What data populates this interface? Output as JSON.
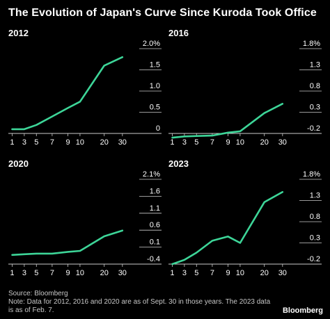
{
  "title": "The Evolution of Japan's Curve Since Kuroda Took Office",
  "colors": {
    "background": "#000000",
    "line": "#3dd598",
    "text": "#ffffff",
    "axis": "#cccccc"
  },
  "chart_data": [
    {
      "type": "line",
      "title": "2012",
      "categories": [
        "1",
        "3",
        "5",
        "7",
        "9",
        "10",
        "20",
        "30"
      ],
      "values": [
        0.1,
        0.1,
        0.2,
        0.4,
        0.6,
        0.75,
        1.6,
        1.8
      ],
      "ytick_labels": [
        "2.0%",
        "1.5",
        "1.0",
        "0.5",
        "0"
      ],
      "yticks": [
        2.0,
        1.5,
        1.0,
        0.5,
        0
      ],
      "ylim": [
        0,
        2.0
      ],
      "grid": false
    },
    {
      "type": "line",
      "title": "2016",
      "categories": [
        "1",
        "3",
        "5",
        "7",
        "9",
        "10",
        "20",
        "30"
      ],
      "values": [
        -0.3,
        -0.27,
        -0.26,
        -0.25,
        -0.18,
        -0.15,
        0.28,
        0.5
      ],
      "ytick_labels": [
        "1.8%",
        "1.3",
        "0.8",
        "0.3",
        "-0.2"
      ],
      "yticks": [
        1.8,
        1.3,
        0.8,
        0.3,
        -0.2
      ],
      "ylim": [
        -0.2,
        1.8
      ],
      "grid": false
    },
    {
      "type": "line",
      "title": "2020",
      "categories": [
        "1",
        "3",
        "5",
        "7",
        "9",
        "10",
        "20",
        "30"
      ],
      "values": [
        -0.13,
        -0.11,
        -0.09,
        -0.09,
        -0.04,
        -0.01,
        0.42,
        0.59
      ],
      "ytick_labels": [
        "2.1%",
        "1.6",
        "1.1",
        "0.6",
        "0.1",
        "-0.4"
      ],
      "yticks": [
        2.1,
        1.6,
        1.1,
        0.6,
        0.1,
        -0.4
      ],
      "ylim": [
        -0.4,
        2.1
      ],
      "grid": false
    },
    {
      "type": "line",
      "title": "2023",
      "categories": [
        "1",
        "3",
        "5",
        "7",
        "9",
        "10",
        "20",
        "30"
      ],
      "values": [
        -0.2,
        -0.1,
        0.07,
        0.35,
        0.45,
        0.3,
        1.26,
        1.5
      ],
      "ytick_labels": [
        "1.8%",
        "1.3",
        "0.8",
        "0.3",
        "-0.2"
      ],
      "yticks": [
        1.8,
        1.3,
        0.8,
        0.3,
        -0.2
      ],
      "ylim": [
        -0.2,
        1.8
      ],
      "grid": false
    }
  ],
  "footer": {
    "source": "Source: Bloomberg",
    "note": "Note: Data for 2012, 2016 and 2020 are as of Sept. 30 in those years. The 2023 data is as of Feb. 7."
  },
  "brand": "Bloomberg"
}
